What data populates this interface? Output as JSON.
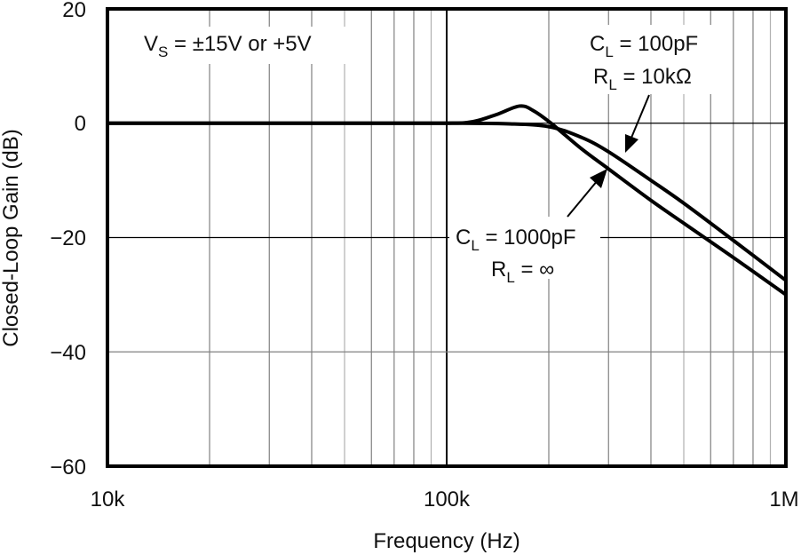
{
  "chart_data": {
    "type": "line",
    "title": "",
    "xlabel": "Frequency (Hz)",
    "ylabel": "Closed-Loop Gain (dB)",
    "xscale": "log",
    "xlim": [
      10000,
      1000000
    ],
    "ylim": [
      -60,
      20
    ],
    "grid": true,
    "x_tick_labels": [
      "10k",
      "100k",
      "1M"
    ],
    "x_tick_values": [
      10000,
      100000,
      1000000
    ],
    "y_tick_labels": [
      "20",
      "0",
      "−20",
      "−40",
      "−60"
    ],
    "y_tick_values": [
      20,
      0,
      -20,
      -40,
      -60
    ],
    "series": [
      {
        "name": "C_L = 100pF, R_L = 10kΩ",
        "x": [
          10000,
          50000,
          100000,
          150000,
          200000,
          250000,
          300000,
          400000,
          500000,
          700000,
          1000000
        ],
        "y": [
          0,
          0,
          0,
          -0.1,
          -0.6,
          -2.5,
          -5,
          -10,
          -14,
          -20.5,
          -27.5
        ]
      },
      {
        "name": "C_L = 1000pF, R_L = ∞",
        "x": [
          10000,
          50000,
          100000,
          120000,
          140000,
          164000,
          180000,
          203000,
          250000,
          300000,
          400000,
          500000,
          700000,
          1000000
        ],
        "y": [
          0,
          0,
          0,
          0.3,
          1.5,
          3.0,
          2.2,
          0,
          -4.5,
          -8,
          -13.5,
          -17.5,
          -23.5,
          -30
        ]
      }
    ],
    "annotations": [
      {
        "text": "V_S = ±15V or +5V"
      },
      {
        "text": "C_L = 100pF",
        "line2": "R_L = 10kΩ",
        "points_to": "C_L = 100pF curve"
      },
      {
        "text": "C_L = 1000pF",
        "line2": "R_L = ∞",
        "points_to": "C_L = 1000pF curve"
      }
    ]
  },
  "labels": {
    "xlabel": "Frequency (Hz)",
    "ylabel": "Closed-Loop Gain (dB)",
    "x_ticks": [
      "10k",
      "100k",
      "1M"
    ],
    "y_ticks": [
      "20",
      "0",
      "−20",
      "−40",
      "−60"
    ],
    "vs_main": "V",
    "vs_sub": "S",
    "vs_rest": " = ±15V or +5V",
    "cl100_c": "C",
    "cl100_sub": "L",
    "cl100_rest": " = 100pF",
    "rl10k_r": "R",
    "rl10k_sub": "L",
    "rl10k_rest": " = 10kΩ",
    "cl1000_c": "C",
    "cl1000_sub": "L",
    "cl1000_rest": " = 1000pF",
    "rlinf_r": "R",
    "rlinf_sub": "L",
    "rlinf_rest": " = ∞"
  }
}
